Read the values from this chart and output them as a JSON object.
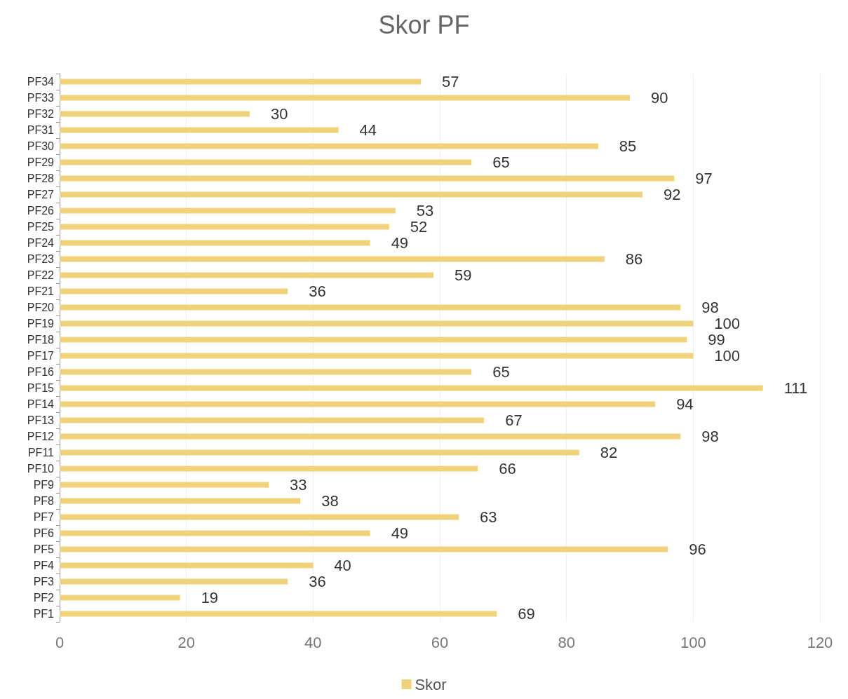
{
  "chart_data": {
    "type": "bar",
    "orientation": "horizontal",
    "title": "Skor PF",
    "categories": [
      "PF34",
      "PF33",
      "PF32",
      "PF31",
      "PF30",
      "PF29",
      "PF28",
      "PF27",
      "PF26",
      "PF25",
      "PF24",
      "PF23",
      "PF22",
      "PF21",
      "PF20",
      "PF19",
      "PF18",
      "PF17",
      "PF16",
      "PF15",
      "PF14",
      "PF13",
      "PF12",
      "PF11",
      "PF10",
      "PF9",
      "PF8",
      "PF7",
      "PF6",
      "PF5",
      "PF4",
      "PF3",
      "PF2",
      "PF1"
    ],
    "series": [
      {
        "name": "Skor",
        "color": "#f0d27a",
        "values": [
          57,
          90,
          30,
          44,
          85,
          65,
          97,
          92,
          53,
          52,
          49,
          86,
          59,
          36,
          98,
          100,
          99,
          100,
          65,
          111,
          94,
          67,
          98,
          82,
          66,
          33,
          38,
          63,
          49,
          96,
          40,
          36,
          19,
          69
        ]
      }
    ],
    "xlim": [
      0,
      120
    ],
    "xticks": [
      0,
      20,
      40,
      60,
      80,
      100,
      120
    ],
    "grid": "x",
    "legend": "bottom",
    "data_labels": true
  }
}
